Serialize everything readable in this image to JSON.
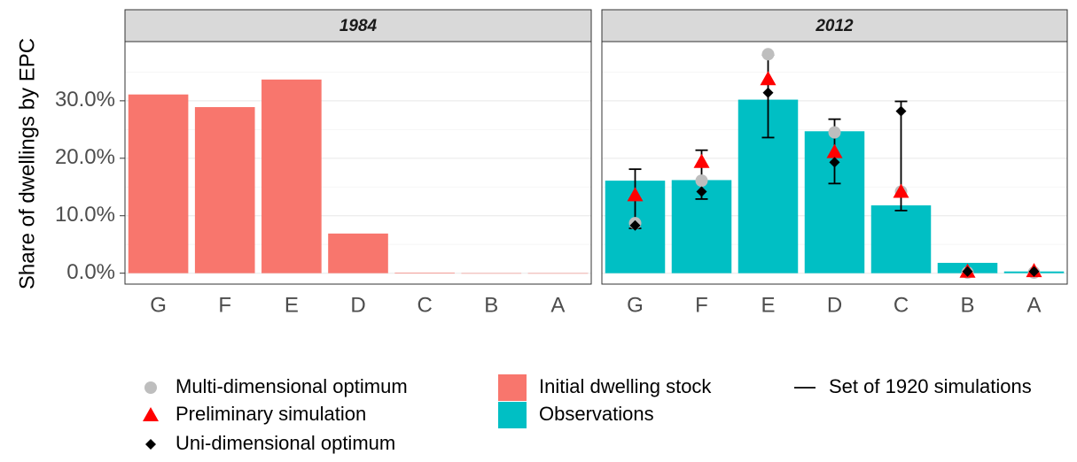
{
  "chart_data": [
    {
      "type": "bar",
      "title": "1984",
      "ylabel": "Share of dwellings by EPC",
      "categories": [
        "G",
        "F",
        "E",
        "D",
        "C",
        "B",
        "A"
      ],
      "ylim": [
        -1.9,
        40.3
      ],
      "yticks": [
        {
          "value": 0,
          "label": "0.0%"
        },
        {
          "value": 10,
          "label": "10.0%"
        },
        {
          "value": 20,
          "label": "20.0%"
        },
        {
          "value": 30,
          "label": "30.0%"
        }
      ],
      "grid": true,
      "series": [
        {
          "name": "Initial dwelling stock",
          "color": "#f8766d",
          "kind": "bar",
          "values": [
            31.1,
            28.9,
            33.7,
            6.9,
            0.1,
            0,
            0
          ]
        }
      ]
    },
    {
      "type": "bar",
      "title": "2012",
      "categories": [
        "G",
        "F",
        "E",
        "D",
        "C",
        "B",
        "A"
      ],
      "ylim": [
        -1.9,
        40.3
      ],
      "yticks": [
        0,
        10,
        20,
        30
      ],
      "grid": true,
      "series": [
        {
          "name": "Observations",
          "color": "#00bfc4",
          "kind": "bar",
          "values": [
            16.1,
            16.2,
            30.2,
            24.7,
            11.8,
            1.8,
            0.3
          ]
        },
        {
          "name": "Set of 1920 simulations",
          "color": "#000000",
          "kind": "errorbar",
          "low": [
            7.8,
            12.9,
            23.6,
            15.6,
            10.9,
            null,
            null
          ],
          "high": [
            18.1,
            21.4,
            38.0,
            26.8,
            29.9,
            null,
            null
          ]
        },
        {
          "name": "Multi-dimensional optimum",
          "color": "#bebebe",
          "kind": "circle",
          "values": [
            8.7,
            16.1,
            38.1,
            24.5,
            14.2,
            0.1,
            0.1
          ]
        },
        {
          "name": "Preliminary simulation",
          "color": "#ff0000",
          "kind": "triangle",
          "values": [
            13.6,
            19.4,
            33.8,
            21.1,
            14.2,
            0.3,
            0.4
          ]
        },
        {
          "name": "Uni-dimensional optimum",
          "color": "#000000",
          "kind": "diamond",
          "values": [
            8.3,
            14.2,
            31.4,
            19.3,
            28.2,
            0.3,
            0.3
          ]
        }
      ]
    }
  ]
}
